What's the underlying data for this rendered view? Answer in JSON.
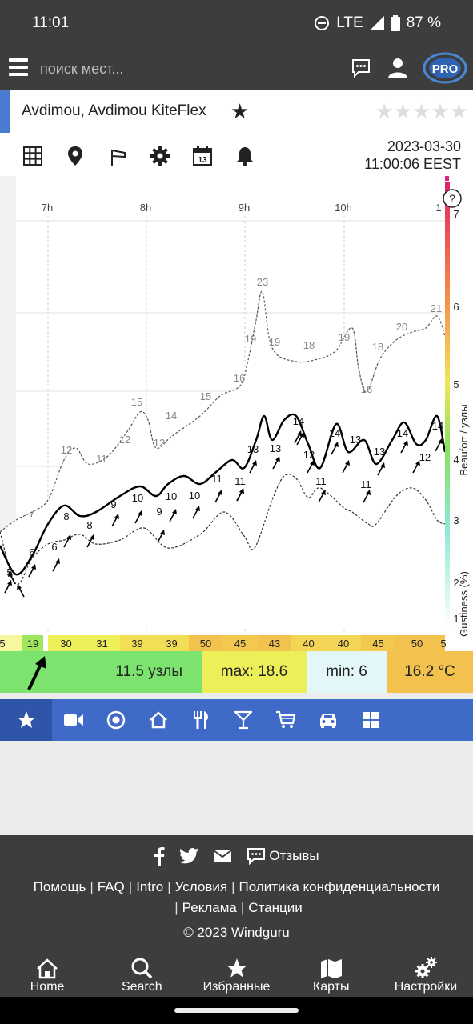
{
  "status_bar": {
    "time": "11:01",
    "network": "LTE",
    "battery": "87 %"
  },
  "header": {
    "search_placeholder": "поиск мест...",
    "pro_badge": "PRO"
  },
  "location": {
    "name": "Avdimou, Avdimou KiteFlex",
    "rating_stars": 5
  },
  "toolbar": {
    "icons": [
      "grid-icon",
      "map-pin-icon",
      "wind-sock-icon",
      "gear-icon",
      "calendar-icon",
      "bell-icon"
    ],
    "calendar_day": "13",
    "date": "2023-03-30",
    "time": "11:00:06 EEST"
  },
  "chart_data": {
    "type": "area",
    "x_ticks": [
      "7h",
      "8h",
      "9h",
      "10h",
      "1"
    ],
    "y_right_ticks": [
      "7",
      "6",
      "5",
      "4",
      "3",
      "2"
    ],
    "y_right_label": "Beaufort / узлы",
    "gust_label": "Gustiness (%)",
    "gust_ticks": [
      "2",
      "1"
    ],
    "help": "?",
    "wind_labels": [
      "5",
      "6",
      "6",
      "8",
      "8",
      "9",
      "10",
      "9",
      "10",
      "10",
      "11",
      "11",
      "11",
      "13",
      "13",
      "14",
      "15",
      "12",
      "11",
      "14",
      "13",
      "11",
      "13",
      "14",
      "12",
      "14"
    ],
    "min_labels": [
      "7"
    ],
    "max_labels": [
      "12",
      "11",
      "12",
      "15",
      "12",
      "14",
      "15",
      "16",
      "19",
      "23",
      "19",
      "18",
      "19",
      "16",
      "18",
      "20",
      "21"
    ],
    "gustiness": [
      "5",
      "19",
      "30",
      "31",
      "39",
      "39",
      "50",
      "45",
      "43",
      "40",
      "40",
      "45",
      "50",
      "5"
    ]
  },
  "summary": {
    "wind": "11.5 узлы",
    "max": "max: 18.6",
    "min": "min: 6",
    "temp": "16.2 °C"
  },
  "categories": [
    "star-icon",
    "video-icon",
    "target-icon",
    "home-icon",
    "restaurant-icon",
    "cocktail-icon",
    "cart-icon",
    "car-icon",
    "apps-icon"
  ],
  "footer": {
    "feedback": "Отзывы",
    "links": [
      "Помощь",
      "FAQ",
      "Intro",
      "Условия",
      "Политика конфиденциальности",
      "Реклама",
      "Станции"
    ],
    "copyright": "© 2023 Windguru"
  },
  "bottom_nav": [
    {
      "label": "Home",
      "icon": "home-icon"
    },
    {
      "label": "Search",
      "icon": "search-icon"
    },
    {
      "label": "Избранные",
      "icon": "star-icon"
    },
    {
      "label": "Карты",
      "icon": "map-icon"
    },
    {
      "label": "Настройки",
      "icon": "settings-icon"
    }
  ]
}
